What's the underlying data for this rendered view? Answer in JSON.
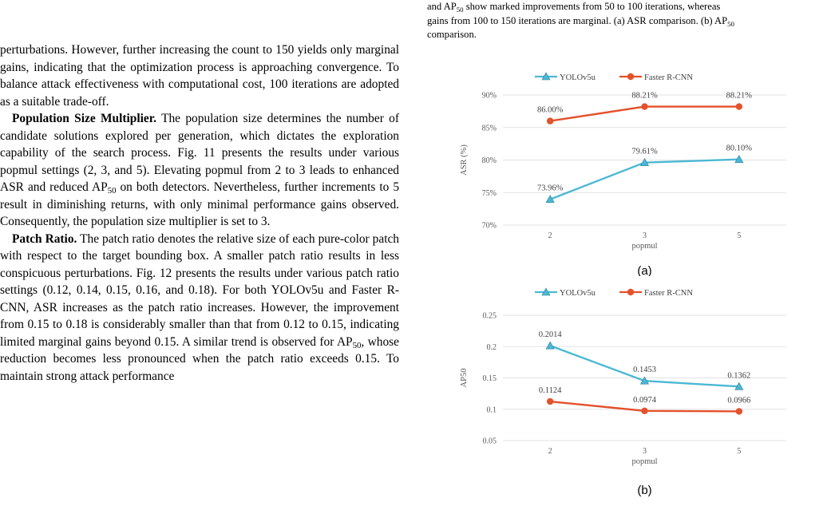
{
  "caption_top": {
    "line1_prefix": "and AP",
    "line1_sub": "50",
    "line1_suffix": " show marked improvements from 50 to 100 iterations, whereas",
    "line2_prefix": "gains from 100 to 150 iterations are marginal. (a) ASR comparison. (b) AP",
    "line2_sub": "50",
    "line3": "comparison."
  },
  "left_text": {
    "p1": "perturbations. However, further increasing the count to 150 yields only marginal gains, indicating that the optimization process is approaching convergence. To balance attack effectiveness with computational cost, 100 iterations are adopted as a suitable trade-off.",
    "p2_heading": "Population Size Multiplier.",
    "p2_part1": " The population size determines the number of candidate solutions explored per generation, which dictates the exploration capability of the search process. Fig. 11 presents the results under various popmul settings (2, 3, and 5). Elevating popmul from 2 to 3 leads to enhanced ASR and reduced AP",
    "p2_sub": "50",
    "p2_part2": " on both detectors. Nevertheless, further increments to 5 result in diminishing returns, with only minimal performance gains observed. Consequently, the population size multiplier is set to 3.",
    "p3_heading": "Patch Ratio.",
    "p3_part1": " The patch ratio denotes the relative size of each pure-color patch with respect to the target bounding box. A smaller patch ratio results in less conspicuous perturbations. Fig. 12 presents the results under various patch ratio settings (0.12, 0.14, 0.15, 0.16, and 0.18). For both YOLOv5u and Faster R-CNN, ASR increases as the patch ratio increases. However, the improvement from 0.15 to 0.18 is considerably smaller than that from 0.12 to 0.15, indicating limited marginal gains beyond 0.15. A similar trend is observed for AP",
    "p3_sub": "50",
    "p3_part2": ", whose reduction becomes less pronounced when the patch ratio exceeds 0.15. To maintain strong attack performance"
  },
  "colors": {
    "yolo": "#4bb8d4",
    "frcnn": "#e4512b",
    "grid": "#d9d9d9",
    "axis_text": "#595959"
  },
  "chart_data": [
    {
      "type": "line",
      "sub_label": "(a)",
      "ylabel": "ASR (%)",
      "xlabel": "popmul",
      "categories": [
        "2",
        "3",
        "5"
      ],
      "y_ticks": [
        "70%",
        "75%",
        "80%",
        "85%",
        "90%"
      ],
      "ylim": [
        70,
        90
      ],
      "grid": true,
      "legend_position": "top-center",
      "series": [
        {
          "name": "YOLOv5u",
          "marker": "triangle",
          "values": [
            73.96,
            79.61,
            80.1
          ],
          "labels": [
            "73.96%",
            "79.61%",
            "80.10%"
          ]
        },
        {
          "name": "Faster R-CNN",
          "marker": "circle",
          "values": [
            86.0,
            88.21,
            88.21
          ],
          "labels": [
            "86.00%",
            "88.21%",
            "88.21%"
          ]
        }
      ]
    },
    {
      "type": "line",
      "sub_label": "(b)",
      "ylabel": "AP50",
      "xlabel": "popmul",
      "categories": [
        "2",
        "3",
        "5"
      ],
      "y_ticks": [
        "0.05",
        "0.1",
        "0.15",
        "0.2",
        "0.25"
      ],
      "ylim": [
        0.05,
        0.25
      ],
      "grid": true,
      "legend_position": "top-center",
      "series": [
        {
          "name": "YOLOv5u",
          "marker": "triangle",
          "values": [
            0.2014,
            0.1453,
            0.1362
          ],
          "labels": [
            "0.2014",
            "0.1453",
            "0.1362"
          ]
        },
        {
          "name": "Faster R-CNN",
          "marker": "circle",
          "values": [
            0.1124,
            0.0974,
            0.0966
          ],
          "labels": [
            "0.1124",
            "0.0974",
            "0.0966"
          ]
        }
      ]
    }
  ]
}
